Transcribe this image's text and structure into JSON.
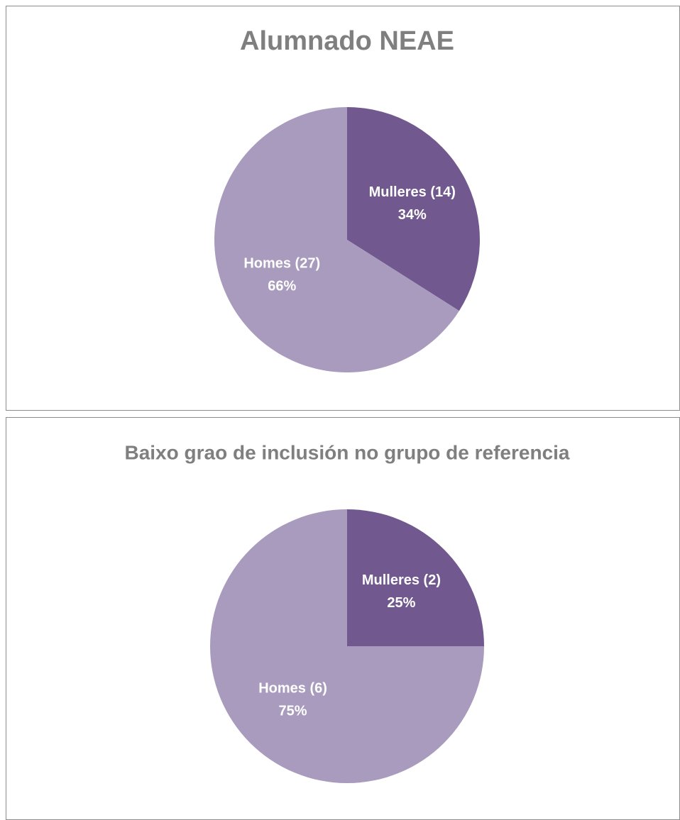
{
  "chart_data": [
    {
      "type": "pie",
      "title": "Alumnado NEAE",
      "categories": [
        "Mulleres (14)",
        "Homes (27)"
      ],
      "values": [
        34,
        66
      ],
      "value_labels": [
        "34%",
        "66%"
      ],
      "colors": [
        "#71588f",
        "#a99bbd"
      ]
    },
    {
      "type": "pie",
      "title": "Baixo grao de inclusión no grupo de referencia",
      "categories": [
        "Mulleres (2)",
        "Homes (6)"
      ],
      "values": [
        25,
        75
      ],
      "value_labels": [
        "25%",
        "75%"
      ],
      "colors": [
        "#71588f",
        "#a99bbd"
      ]
    }
  ]
}
